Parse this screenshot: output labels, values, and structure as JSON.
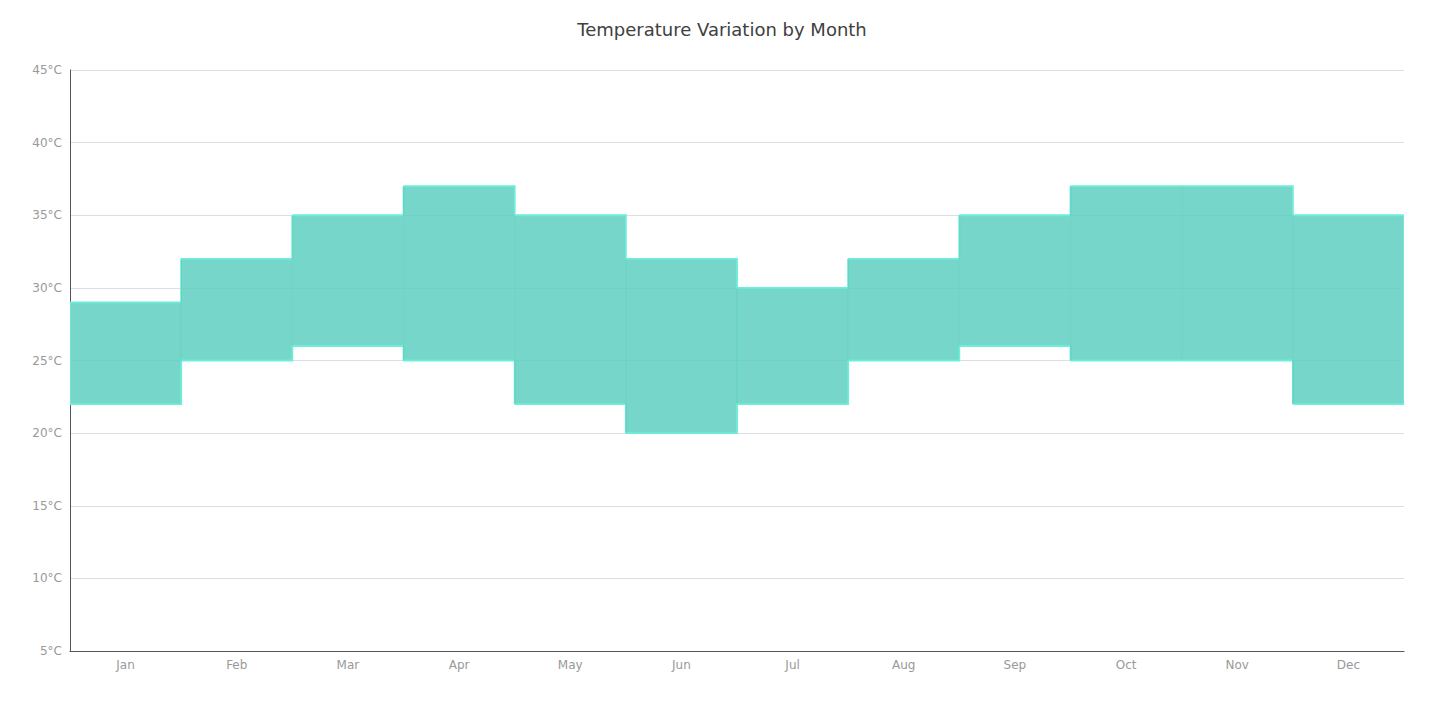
{
  "chart_data": {
    "type": "band",
    "title": "Temperature Variation by Month",
    "categories": [
      "Jan",
      "Feb",
      "Mar",
      "Apr",
      "May",
      "Jun",
      "Jul",
      "Aug",
      "Sep",
      "Oct",
      "Nov",
      "Dec"
    ],
    "low": [
      22,
      25,
      26,
      25,
      22,
      20,
      22,
      25,
      26,
      25,
      25,
      22
    ],
    "high": [
      29,
      32,
      35,
      37,
      35,
      32,
      30,
      32,
      35,
      37,
      37,
      35
    ],
    "color": "#5ECFBF",
    "ylim": [
      5,
      45
    ],
    "yticks": [
      {
        "value": 5,
        "label": "5°C"
      },
      {
        "value": 10,
        "label": "10°C"
      },
      {
        "value": 15,
        "label": "15°C"
      },
      {
        "value": 20,
        "label": "20°C"
      },
      {
        "value": 25,
        "label": "25°C"
      },
      {
        "value": 30,
        "label": "30°C"
      },
      {
        "value": 35,
        "label": "35°C"
      },
      {
        "value": 40,
        "label": "40°C"
      },
      {
        "value": 45,
        "label": "45°C"
      }
    ],
    "grid": true
  }
}
